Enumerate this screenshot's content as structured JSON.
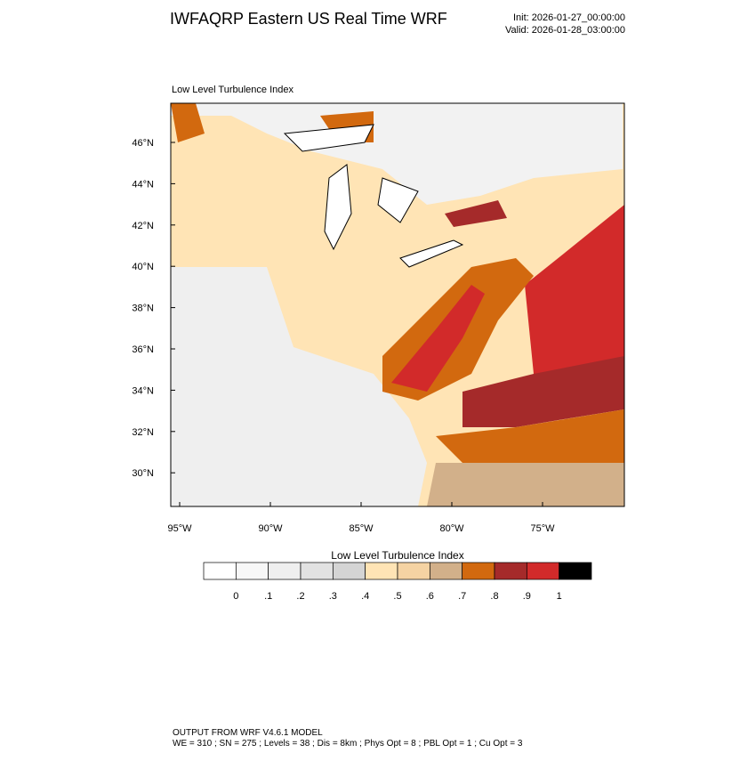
{
  "header": {
    "title": "IWFAQRP Eastern US Real Time WRF",
    "init": "Init: 2026-01-27_00:00:00",
    "valid": "Valid: 2026-01-28_03:00:00"
  },
  "map": {
    "subtitle": "Low Level Turbulence Index",
    "lat_labels": [
      "46°N",
      "44°N",
      "42°N",
      "40°N",
      "38°N",
      "36°N",
      "34°N",
      "32°N",
      "30°N"
    ],
    "lon_labels": [
      "95°W",
      "90°W",
      "85°W",
      "80°W",
      "75°W"
    ]
  },
  "colorbar": {
    "title": "Low Level Turbulence Index",
    "colors": [
      "#ffffff",
      "#f7f7f7",
      "#efefef",
      "#e2e2e2",
      "#d4d4d4",
      "#ffe4b5",
      "#f5d3a3",
      "#d2b08a",
      "#d2690f",
      "#a52a2a",
      "#d22a2a",
      "#000000"
    ],
    "labels": [
      "0",
      ".1",
      ".2",
      ".3",
      ".4",
      ".5",
      ".6",
      ".7",
      ".8",
      ".9",
      "1"
    ]
  },
  "footer": {
    "line1": "OUTPUT FROM WRF V4.6.1 MODEL",
    "line2": "WE = 310 ; SN = 275 ; Levels = 38 ; Dis = 8km ; Phys Opt = 8 ; PBL Opt = 1 ; Cu Opt = 3"
  }
}
